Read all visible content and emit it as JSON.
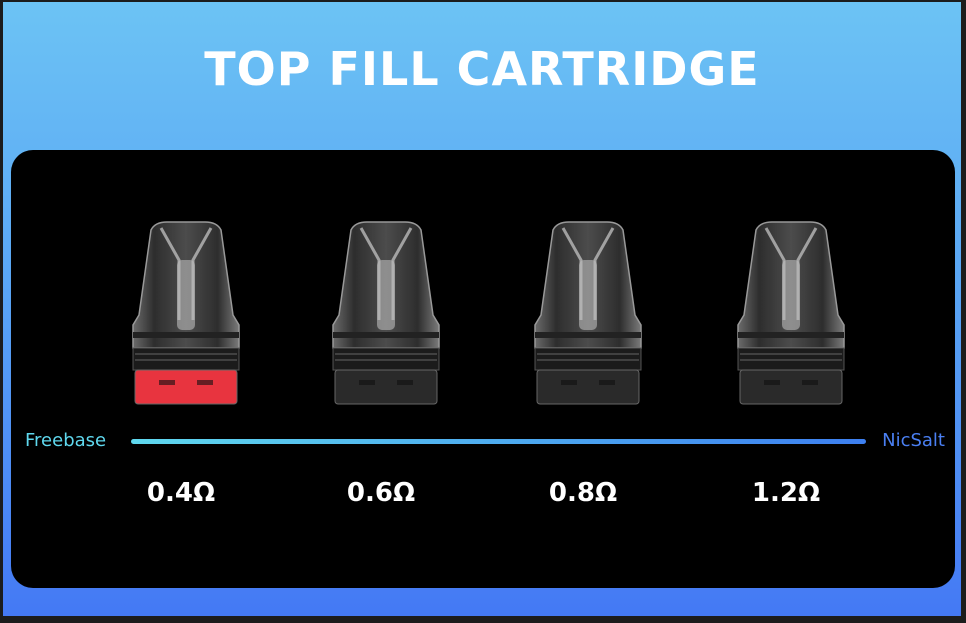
{
  "title": "TOP FILL CARTRIDGE",
  "scale": {
    "left": "Freebase",
    "right": "NicSalt"
  },
  "cartridges": [
    {
      "resistance": "0.4Ω",
      "base_color": "#e8343f"
    },
    {
      "resistance": "0.6Ω",
      "base_color": "#2a2a2a"
    },
    {
      "resistance": "0.8Ω",
      "base_color": "#2a2a2a"
    },
    {
      "resistance": "1.2Ω",
      "base_color": "#2a2a2a"
    }
  ],
  "colors": {
    "background_top": "#6cc3f4",
    "background_bottom": "#4479f4",
    "panel": "#000000",
    "freebase": "#5fd8ee",
    "nicsalt": "#4a7ff2"
  }
}
